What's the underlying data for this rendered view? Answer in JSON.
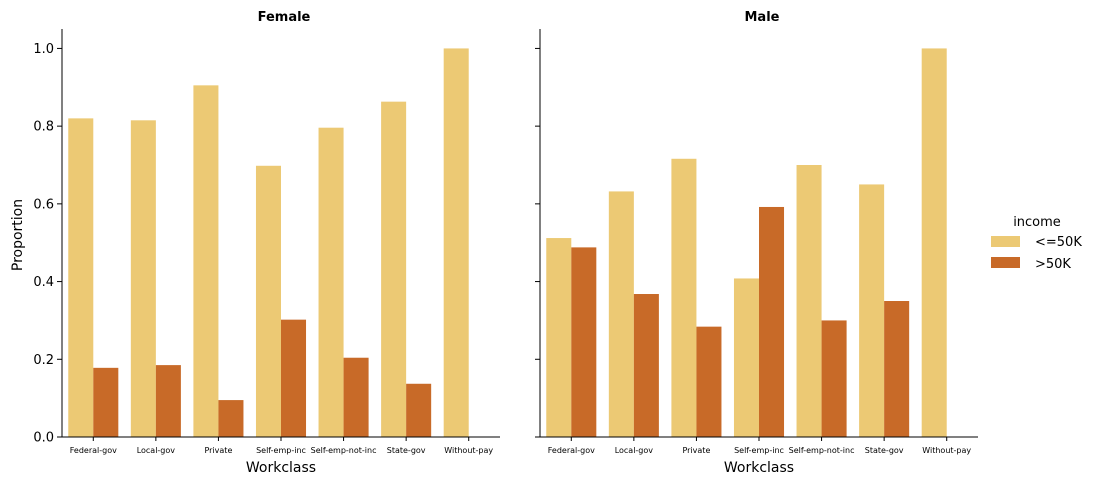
{
  "chart_data": {
    "type": "bar",
    "ylabel": "Proportion",
    "ylim": [
      0,
      1.05
    ],
    "yticks": [
      "0.0",
      "0.2",
      "0.4",
      "0.6",
      "0.8",
      "1.0"
    ],
    "grid": false,
    "legend": {
      "title": "income",
      "placement": "right",
      "entries": [
        {
          "name": "<=50K",
          "color": "#ecc974"
        },
        {
          "name": ">50K",
          "color": "#c86a28"
        }
      ]
    },
    "categories": [
      "Federal-gov",
      "Local-gov",
      "Private",
      "Self-emp-inc",
      "Self-emp-not-inc",
      "State-gov",
      "Without-pay"
    ],
    "panels": [
      {
        "title": "Female",
        "xlabel": "Workclass",
        "series": [
          {
            "name": "<=50K",
            "values": [
              0.82,
              0.815,
              0.905,
              0.698,
              0.796,
              0.863,
              1.0
            ]
          },
          {
            "name": ">50K",
            "values": [
              0.178,
              0.185,
              0.095,
              0.302,
              0.204,
              0.137,
              0.0
            ]
          }
        ]
      },
      {
        "title": "Male",
        "xlabel": "Workclass",
        "series": [
          {
            "name": "<=50K",
            "values": [
              0.512,
              0.632,
              0.716,
              0.408,
              0.7,
              0.65,
              1.0
            ]
          },
          {
            "name": ">50K",
            "values": [
              0.488,
              0.368,
              0.284,
              0.592,
              0.3,
              0.35,
              0.0
            ]
          }
        ]
      }
    ]
  }
}
